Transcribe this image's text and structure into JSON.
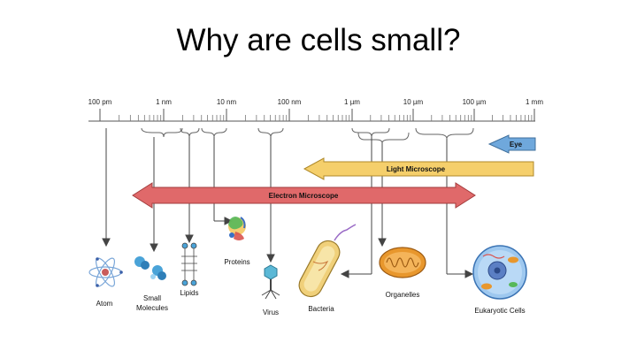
{
  "slide": {
    "title": "Why are cells small?"
  },
  "scale": {
    "tick_labels": [
      "100 pm",
      "1 nm",
      "10 nm",
      "100 nm",
      "1 µm",
      "10 µm",
      "100 µm",
      "1 mm"
    ]
  },
  "ranges": {
    "eye": "Eye",
    "light_microscope": "Light Microscope",
    "electron_microscope": "Electron Microscope"
  },
  "objects": {
    "atom": "Atom",
    "small_molecules_line1": "Small",
    "small_molecules_line2": "Molecules",
    "lipids": "Lipids",
    "proteins": "Proteins",
    "virus": "Virus",
    "bacteria": "Bacteria",
    "organelles": "Organelles",
    "eukaryotic_cells": "Eukaryotic Cells"
  },
  "colors": {
    "eye_arrow": "#6fa8dc",
    "light_microscope_arrow": "#f5cf6b",
    "electron_microscope_arrow": "#e0696a",
    "scale_line": "#555555",
    "pointer": "#444444"
  }
}
